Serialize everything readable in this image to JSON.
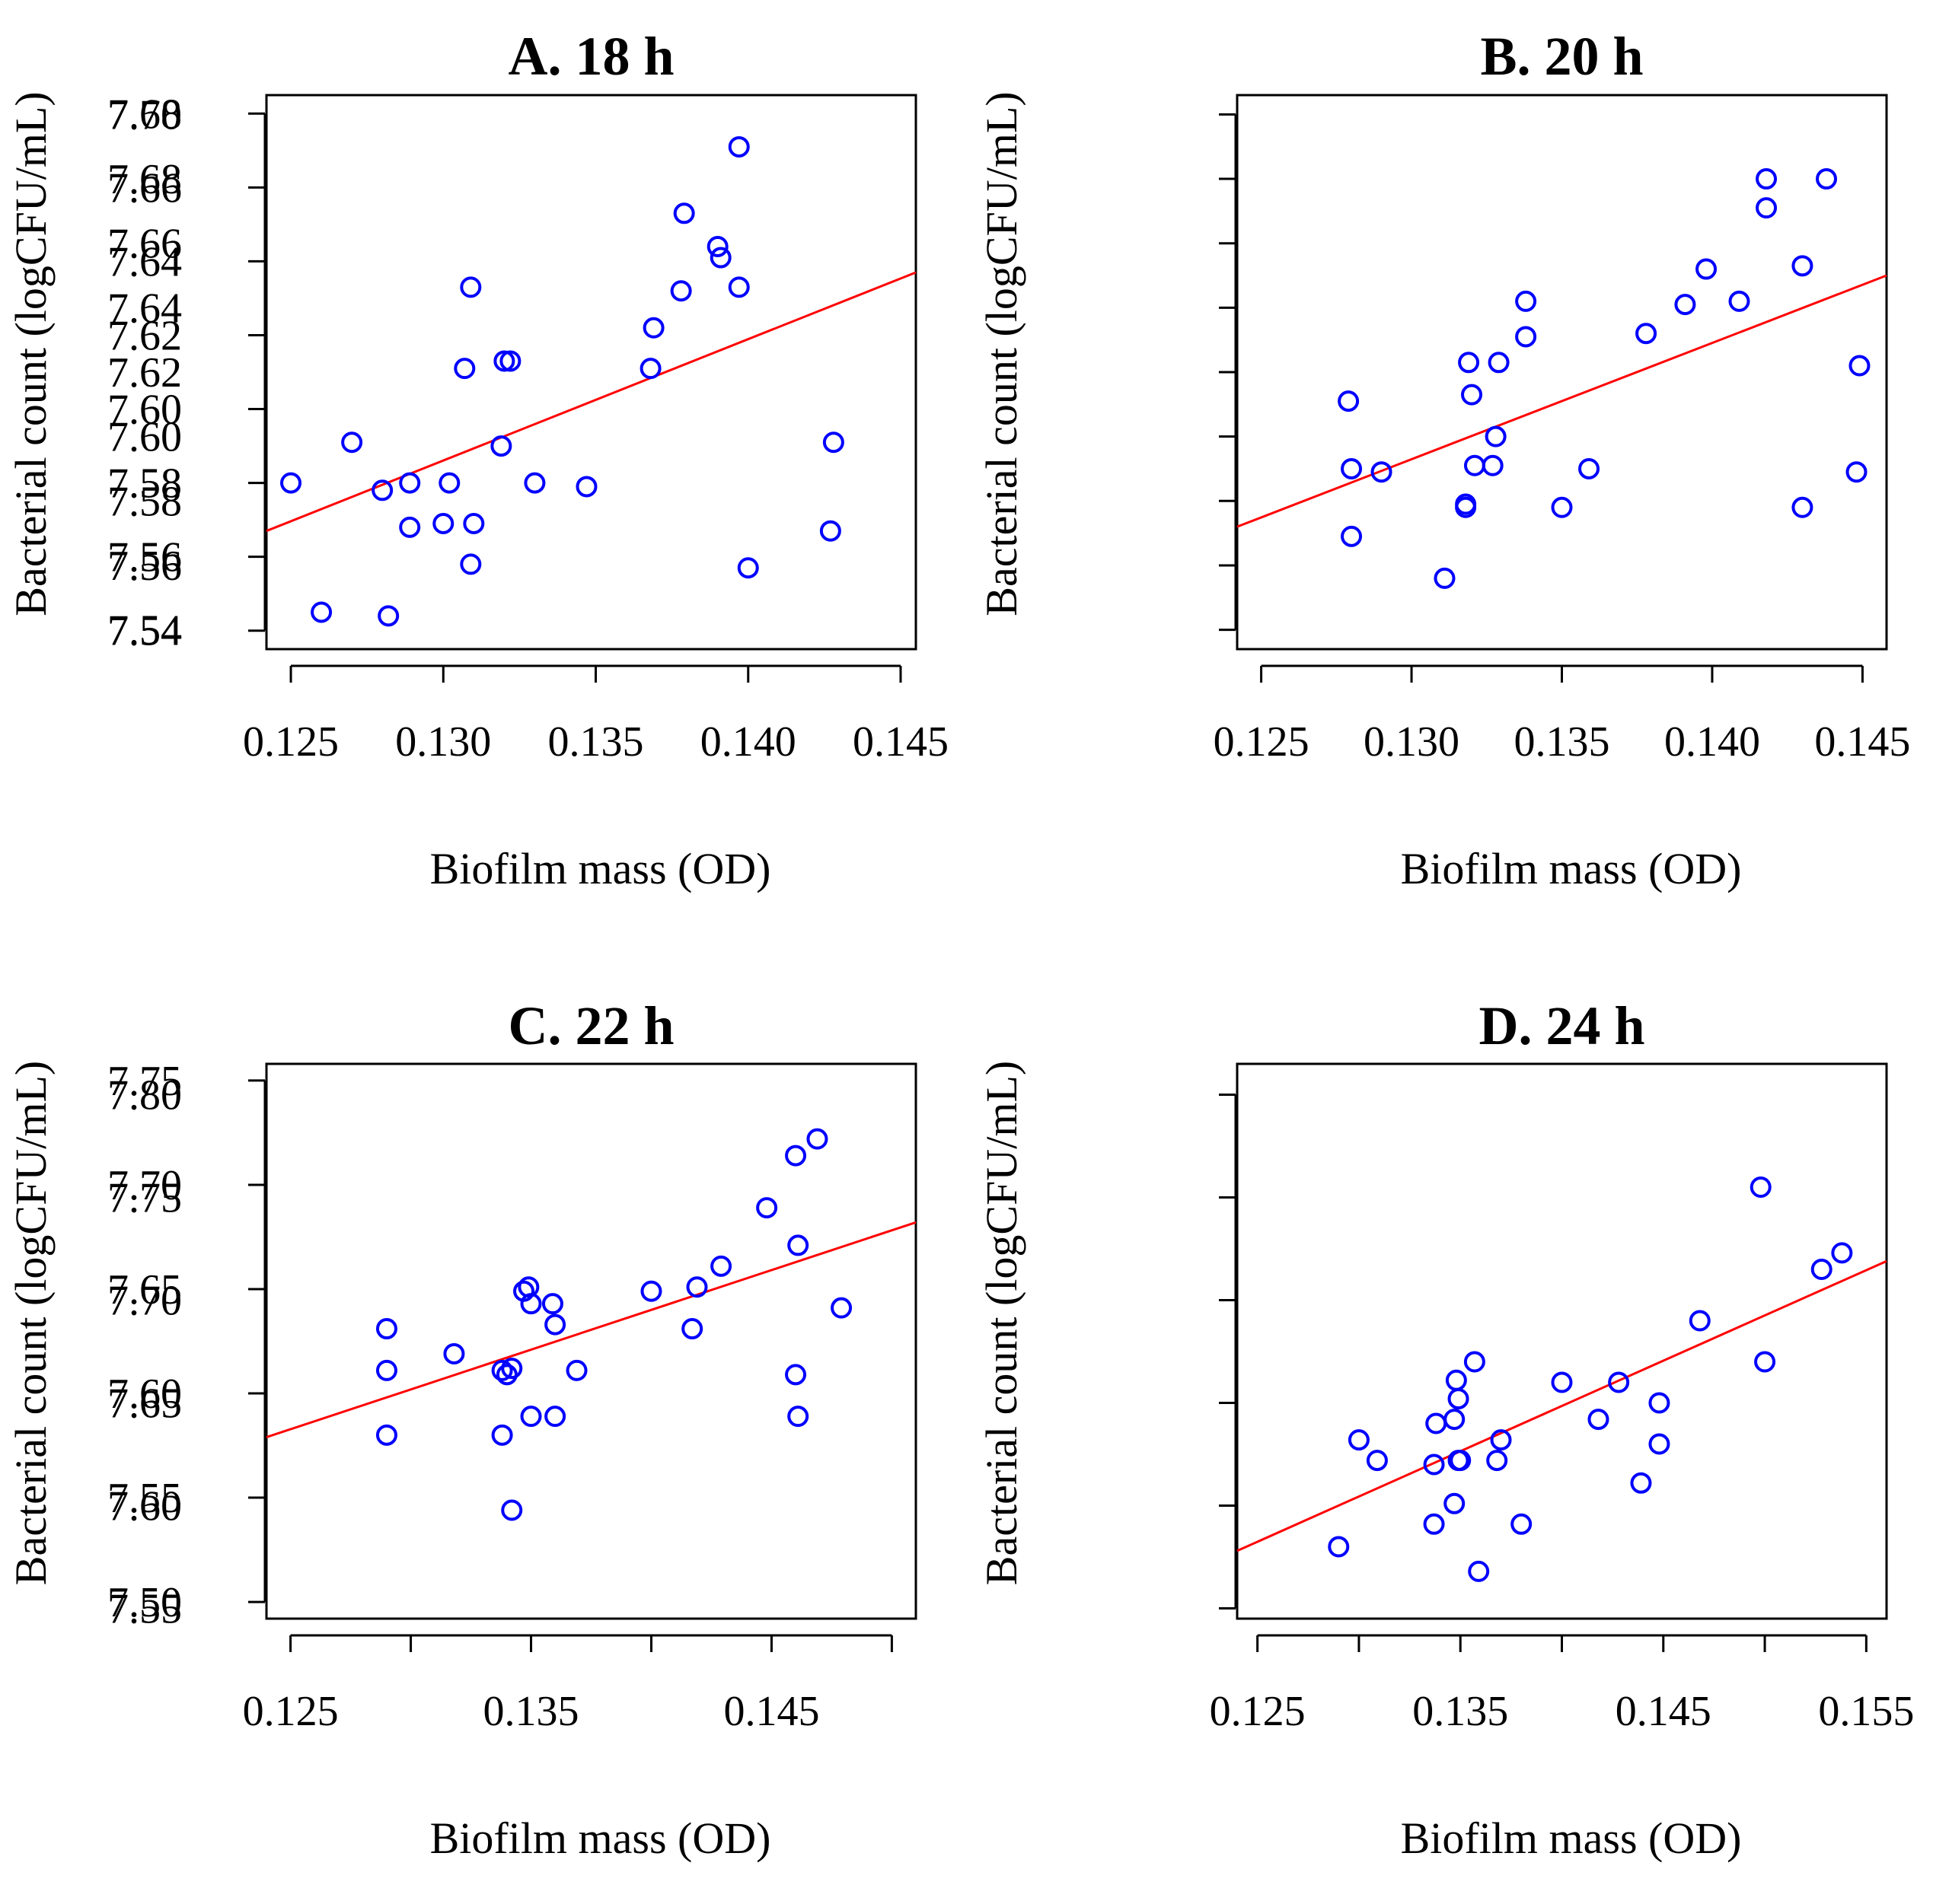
{
  "chart_data": [
    {
      "type": "scatter",
      "title": "A. 18 h",
      "xlabel": "Biofilm mass (OD)",
      "ylabel": "Bacterial count (logCFU/mL)",
      "xlim": [
        0.1242,
        0.1455
      ],
      "ylim": [
        7.535,
        7.685
      ],
      "xticks": [
        0.125,
        0.13,
        0.135,
        0.14,
        0.145
      ],
      "yticks": [
        7.54,
        7.56,
        7.58,
        7.6,
        7.62,
        7.64,
        7.66,
        7.68
      ],
      "xtick_labels": [
        "0.125",
        "0.130",
        "0.135",
        "0.140",
        "0.145"
      ],
      "ytick_labels": [
        "7.54",
        "7.56",
        "7.58",
        "7.60",
        "7.62",
        "7.64",
        "7.66",
        "7.68"
      ],
      "points": [
        [
          0.125,
          7.58
        ],
        [
          0.126,
          7.545
        ],
        [
          0.127,
          7.591
        ],
        [
          0.128,
          7.578
        ],
        [
          0.1282,
          7.544
        ],
        [
          0.1289,
          7.58
        ],
        [
          0.1289,
          7.568
        ],
        [
          0.13,
          7.569
        ],
        [
          0.1302,
          7.58
        ],
        [
          0.1307,
          7.611
        ],
        [
          0.1309,
          7.558
        ],
        [
          0.1309,
          7.633
        ],
        [
          0.131,
          7.569
        ],
        [
          0.1319,
          7.59
        ],
        [
          0.132,
          7.613
        ],
        [
          0.1322,
          7.613
        ],
        [
          0.133,
          7.58
        ],
        [
          0.1347,
          7.579
        ],
        [
          0.1368,
          7.611
        ],
        [
          0.1369,
          7.622
        ],
        [
          0.1378,
          7.632
        ],
        [
          0.1379,
          7.653
        ],
        [
          0.139,
          7.644
        ],
        [
          0.1391,
          7.641
        ],
        [
          0.1397,
          7.633
        ],
        [
          0.1397,
          7.671
        ],
        [
          0.14,
          7.557
        ],
        [
          0.1427,
          7.567
        ],
        [
          0.1428,
          7.591
        ]
      ],
      "regression": [
        [
          0.1242,
          7.567
        ],
        [
          0.1455,
          7.637
        ]
      ],
      "point_color": "#0000ff",
      "line_color": "#ff0000"
    },
    {
      "type": "scatter",
      "title": "B. 20 h",
      "xlabel": "Biofilm mass (OD)",
      "ylabel": "Bacterial count (logCFU/mL)",
      "xlim": [
        0.1242,
        0.1458
      ],
      "ylim": [
        7.534,
        7.706
      ],
      "xticks": [
        0.125,
        0.13,
        0.135,
        0.14,
        0.145
      ],
      "yticks": [
        7.54,
        7.56,
        7.58,
        7.6,
        7.62,
        7.64,
        7.66,
        7.68,
        7.7
      ],
      "xtick_labels": [
        "0.125",
        "0.130",
        "0.135",
        "0.140",
        "0.145"
      ],
      "ytick_labels": [
        "7.54",
        "7.56",
        "7.58",
        "7.60",
        "7.62",
        "7.64",
        "7.66",
        "7.68",
        "7.70"
      ],
      "points": [
        [
          0.1279,
          7.611
        ],
        [
          0.128,
          7.59
        ],
        [
          0.128,
          7.569
        ],
        [
          0.129,
          7.589
        ],
        [
          0.1311,
          7.556
        ],
        [
          0.1318,
          7.579
        ],
        [
          0.1318,
          7.578
        ],
        [
          0.1319,
          7.623
        ],
        [
          0.132,
          7.613
        ],
        [
          0.1321,
          7.591
        ],
        [
          0.1327,
          7.591
        ],
        [
          0.1328,
          7.6
        ],
        [
          0.1329,
          7.623
        ],
        [
          0.1338,
          7.631
        ],
        [
          0.1338,
          7.642
        ],
        [
          0.135,
          7.578
        ],
        [
          0.1359,
          7.59
        ],
        [
          0.1378,
          7.632
        ],
        [
          0.1391,
          7.641
        ],
        [
          0.1398,
          7.652
        ],
        [
          0.1409,
          7.642
        ],
        [
          0.1418,
          7.671
        ],
        [
          0.1418,
          7.68
        ],
        [
          0.143,
          7.653
        ],
        [
          0.143,
          7.578
        ],
        [
          0.1438,
          7.68
        ],
        [
          0.1448,
          7.589
        ],
        [
          0.1449,
          7.622
        ]
      ],
      "regression": [
        [
          0.1242,
          7.572
        ],
        [
          0.1458,
          7.65
        ]
      ],
      "point_color": "#0000ff",
      "line_color": "#ff0000"
    },
    {
      "type": "scatter",
      "title": "C. 22 h",
      "xlabel": "Biofilm mass (OD)",
      "ylabel": "Bacterial count (logCFU/mL)",
      "xlim": [
        0.124,
        0.151
      ],
      "ylim": [
        7.492,
        7.758
      ],
      "xticks": [
        0.125,
        0.13,
        0.135,
        0.14,
        0.145,
        0.15
      ],
      "yticks": [
        7.5,
        7.55,
        7.6,
        7.65,
        7.7,
        7.75
      ],
      "xtick_labels": [
        "0.125",
        "",
        "0.135",
        "",
        "0.145",
        ""
      ],
      "ytick_labels": [
        "7.50",
        "7.55",
        "7.60",
        "7.65",
        "7.70",
        "7.75"
      ],
      "points": [
        [
          0.129,
          7.631
        ],
        [
          0.129,
          7.611
        ],
        [
          0.129,
          7.58
        ],
        [
          0.1318,
          7.619
        ],
        [
          0.1338,
          7.58
        ],
        [
          0.1338,
          7.611
        ],
        [
          0.134,
          7.609
        ],
        [
          0.1342,
          7.612
        ],
        [
          0.1342,
          7.544
        ],
        [
          0.1347,
          7.649
        ],
        [
          0.1349,
          7.651
        ],
        [
          0.135,
          7.589
        ],
        [
          0.135,
          7.643
        ],
        [
          0.1359,
          7.643
        ],
        [
          0.136,
          7.633
        ],
        [
          0.136,
          7.589
        ],
        [
          0.1369,
          7.611
        ],
        [
          0.14,
          7.649
        ],
        [
          0.1417,
          7.631
        ],
        [
          0.1419,
          7.651
        ],
        [
          0.1429,
          7.661
        ],
        [
          0.1448,
          7.689
        ],
        [
          0.146,
          7.714
        ],
        [
          0.146,
          7.609
        ],
        [
          0.1461,
          7.671
        ],
        [
          0.1461,
          7.589
        ],
        [
          0.1469,
          7.722
        ],
        [
          0.1479,
          7.641
        ]
      ],
      "regression": [
        [
          0.124,
          7.579
        ],
        [
          0.151,
          7.682
        ]
      ],
      "point_color": "#0000ff",
      "line_color": "#ff0000"
    },
    {
      "type": "scatter",
      "title": "D. 24 h",
      "xlabel": "Biofilm mass (OD)",
      "ylabel": "Bacterial count (logCFU/mL)",
      "xlim": [
        0.124,
        0.156
      ],
      "ylim": [
        7.545,
        7.815
      ],
      "xticks": [
        0.125,
        0.13,
        0.135,
        0.14,
        0.145,
        0.15,
        0.155
      ],
      "yticks": [
        7.55,
        7.6,
        7.65,
        7.7,
        7.75,
        7.8
      ],
      "xtick_labels": [
        "0.125",
        "",
        "0.135",
        "",
        "0.145",
        "",
        "0.155"
      ],
      "ytick_labels": [
        "7.55",
        "7.60",
        "7.65",
        "7.70",
        "7.75",
        "7.80"
      ],
      "points": [
        [
          0.129,
          7.58
        ],
        [
          0.13,
          7.632
        ],
        [
          0.1309,
          7.622
        ],
        [
          0.1337,
          7.591
        ],
        [
          0.1337,
          7.62
        ],
        [
          0.1338,
          7.64
        ],
        [
          0.1347,
          7.601
        ],
        [
          0.1347,
          7.642
        ],
        [
          0.1348,
          7.661
        ],
        [
          0.1349,
          7.652
        ],
        [
          0.1349,
          7.622
        ],
        [
          0.135,
          7.622
        ],
        [
          0.1357,
          7.67
        ],
        [
          0.1359,
          7.568
        ],
        [
          0.1368,
          7.622
        ],
        [
          0.137,
          7.632
        ],
        [
          0.138,
          7.591
        ],
        [
          0.14,
          7.66
        ],
        [
          0.1418,
          7.642
        ],
        [
          0.1428,
          7.66
        ],
        [
          0.1439,
          7.611
        ],
        [
          0.1448,
          7.65
        ],
        [
          0.1448,
          7.63
        ],
        [
          0.1468,
          7.69
        ],
        [
          0.1498,
          7.755
        ],
        [
          0.15,
          7.67
        ],
        [
          0.1528,
          7.715
        ],
        [
          0.1538,
          7.723
        ]
      ],
      "regression": [
        [
          0.124,
          7.578
        ],
        [
          0.156,
          7.719
        ]
      ],
      "point_color": "#0000ff",
      "line_color": "#ff0000"
    }
  ]
}
